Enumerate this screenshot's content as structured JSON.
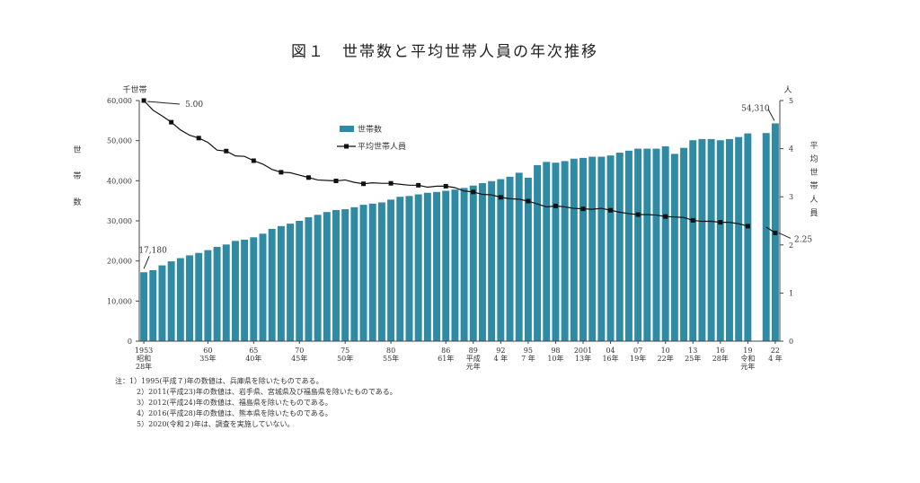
{
  "chart_data": {
    "type": "bar+line",
    "title": "図１　世帯数と平均世帯人員の年次推移",
    "left_axis": {
      "unit": "千世帯",
      "label": [
        "世",
        "帯",
        "数"
      ],
      "range": [
        0,
        60000
      ],
      "ticks": [
        "0",
        "10,000",
        "20,000",
        "30,000",
        "40,000",
        "50,000",
        "60,000"
      ]
    },
    "right_axis": {
      "unit": "人",
      "label": [
        "平",
        "均",
        "世",
        "帯",
        "人",
        "員"
      ],
      "range": [
        0,
        5
      ],
      "ticks": [
        "0",
        "1",
        "2",
        "3",
        "4",
        "5"
      ]
    },
    "years": [
      1953,
      1954,
      1955,
      1956,
      1957,
      1958,
      1959,
      1960,
      1961,
      1962,
      1963,
      1964,
      1965,
      1966,
      1967,
      1968,
      1969,
      1970,
      1971,
      1972,
      1973,
      1974,
      1975,
      1976,
      1977,
      1978,
      1979,
      1980,
      1981,
      1982,
      1983,
      1984,
      1985,
      1986,
      1987,
      1988,
      1989,
      1990,
      1991,
      1992,
      1993,
      1994,
      1995,
      1996,
      1997,
      1998,
      1999,
      2000,
      2001,
      2002,
      2003,
      2004,
      2005,
      2006,
      2007,
      2008,
      2009,
      2010,
      2011,
      2012,
      2013,
      2014,
      2015,
      2016,
      2017,
      2018,
      2019,
      2020,
      2021,
      2022
    ],
    "series": [
      {
        "name": "世帯数",
        "color": "#2f8aa3",
        "values": [
          17180,
          17700,
          18900,
          19900,
          20700,
          21400,
          22000,
          22700,
          23500,
          24100,
          25000,
          25300,
          25900,
          26800,
          28000,
          28700,
          29300,
          30000,
          30900,
          31500,
          32200,
          32700,
          32900,
          33400,
          34000,
          34300,
          34600,
          35300,
          36000,
          36200,
          36600,
          37000,
          37200,
          37500,
          37800,
          38200,
          38800,
          39400,
          39900,
          40400,
          41000,
          42000,
          40770,
          43900,
          44700,
          44500,
          44900,
          45500,
          45700,
          46000,
          46000,
          46300,
          47000,
          47500,
          48000,
          48000,
          48000,
          48600,
          46700,
          48200,
          50100,
          50400,
          50400,
          50100,
          50400,
          50900,
          51800,
          null,
          51900,
          54310
        ]
      },
      {
        "name": "平均世帯人員",
        "color": "#111111",
        "values": [
          5.0,
          4.8,
          4.68,
          4.55,
          4.39,
          4.28,
          4.22,
          4.13,
          3.97,
          3.95,
          3.85,
          3.84,
          3.75,
          3.68,
          3.57,
          3.51,
          3.5,
          3.45,
          3.4,
          3.35,
          3.34,
          3.33,
          3.35,
          3.3,
          3.27,
          3.29,
          3.28,
          3.28,
          3.26,
          3.24,
          3.24,
          3.2,
          3.22,
          3.22,
          3.19,
          3.12,
          3.1,
          3.05,
          3.04,
          2.99,
          2.96,
          2.95,
          2.91,
          2.85,
          2.79,
          2.81,
          2.79,
          2.76,
          2.75,
          2.74,
          2.76,
          2.72,
          2.68,
          2.65,
          2.63,
          2.63,
          2.62,
          2.59,
          2.58,
          2.57,
          2.51,
          2.49,
          2.49,
          2.47,
          2.47,
          2.44,
          2.39,
          null,
          2.37,
          2.25
        ]
      }
    ],
    "annotations": {
      "first_households": "17,180",
      "last_households": "54,310",
      "first_persons": "5.00",
      "last_persons": "2.25"
    },
    "x_tick_labels": [
      {
        "year": 1953,
        "lines": [
          "1953",
          "昭和",
          "28年"
        ]
      },
      {
        "year": 1960,
        "lines": [
          "60",
          "35年"
        ]
      },
      {
        "year": 1965,
        "lines": [
          "65",
          "40年"
        ]
      },
      {
        "year": 1970,
        "lines": [
          "70",
          "45年"
        ]
      },
      {
        "year": 1975,
        "lines": [
          "75",
          "50年"
        ]
      },
      {
        "year": 1980,
        "lines": [
          "80",
          "55年"
        ]
      },
      {
        "year": 1986,
        "lines": [
          "86",
          "61年"
        ]
      },
      {
        "year": 1989,
        "lines": [
          "89",
          "平成",
          "元年"
        ]
      },
      {
        "year": 1992,
        "lines": [
          "92",
          "4 年"
        ]
      },
      {
        "year": 1995,
        "lines": [
          "95",
          "7 年"
        ]
      },
      {
        "year": 1998,
        "lines": [
          "98",
          "10年"
        ]
      },
      {
        "year": 2001,
        "lines": [
          "2001",
          "13年"
        ]
      },
      {
        "year": 2004,
        "lines": [
          "04",
          "16年"
        ]
      },
      {
        "year": 2007,
        "lines": [
          "07",
          "19年"
        ]
      },
      {
        "year": 2010,
        "lines": [
          "10",
          "22年"
        ]
      },
      {
        "year": 2013,
        "lines": [
          "13",
          "25年"
        ]
      },
      {
        "year": 2016,
        "lines": [
          "16",
          "28年"
        ]
      },
      {
        "year": 2019,
        "lines": [
          "19",
          "令和",
          "元年"
        ]
      },
      {
        "year": 2022,
        "lines": [
          "22",
          "4 年"
        ]
      }
    ],
    "legend_position": "top-center"
  },
  "notes": [
    "注：1）1995(平成７)年の数値は、兵庫県を除いたものである。",
    "2）2011(平成23)年の数値は、岩手県、宮城県及び福島県を除いたものである。",
    "3）2012(平成24)年の数値は、福島県を除いたものである。",
    "4）2016(平成28)年の数値は、熊本県を除いたものである。",
    "5）2020(令和２)年は、調査を実施していない。"
  ]
}
